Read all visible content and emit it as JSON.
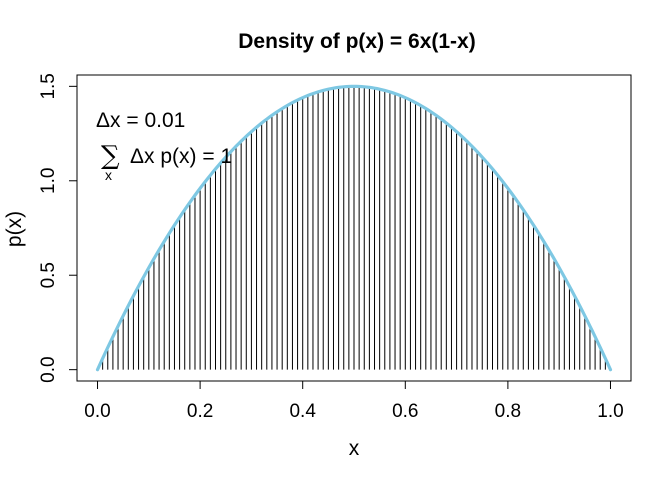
{
  "chart_data": {
    "type": "line",
    "title": "Density of p(x) = 6x(1-x)",
    "xlabel": "x",
    "ylabel": "p(x)",
    "xlim": [
      -0.04,
      1.04
    ],
    "ylim": [
      -0.06,
      1.56
    ],
    "xticks": [
      0.0,
      0.2,
      0.4,
      0.6,
      0.8,
      1.0
    ],
    "xtick_labels": [
      "0.0",
      "0.2",
      "0.4",
      "0.6",
      "0.8",
      "1.0"
    ],
    "yticks": [
      0.0,
      0.5,
      1.0,
      1.5
    ],
    "ytick_labels": [
      "0.0",
      "0.5",
      "1.0",
      "1.5"
    ],
    "grid": false,
    "series": [
      {
        "kind": "spikes",
        "color": "#000000",
        "dx": 0.01,
        "function": "6x(1-x)",
        "x_start": 0.0,
        "x_end": 1.0
      },
      {
        "kind": "curve",
        "color": "#7EC8E3",
        "function": "6x(1-x)",
        "x_start": 0.0,
        "x_end": 1.0
      }
    ],
    "annotations": {
      "line1": "Δx = 0.01",
      "sum_symbol": "∑",
      "sum_sub": "x",
      "line2": "Δx p(x) = 1"
    }
  }
}
